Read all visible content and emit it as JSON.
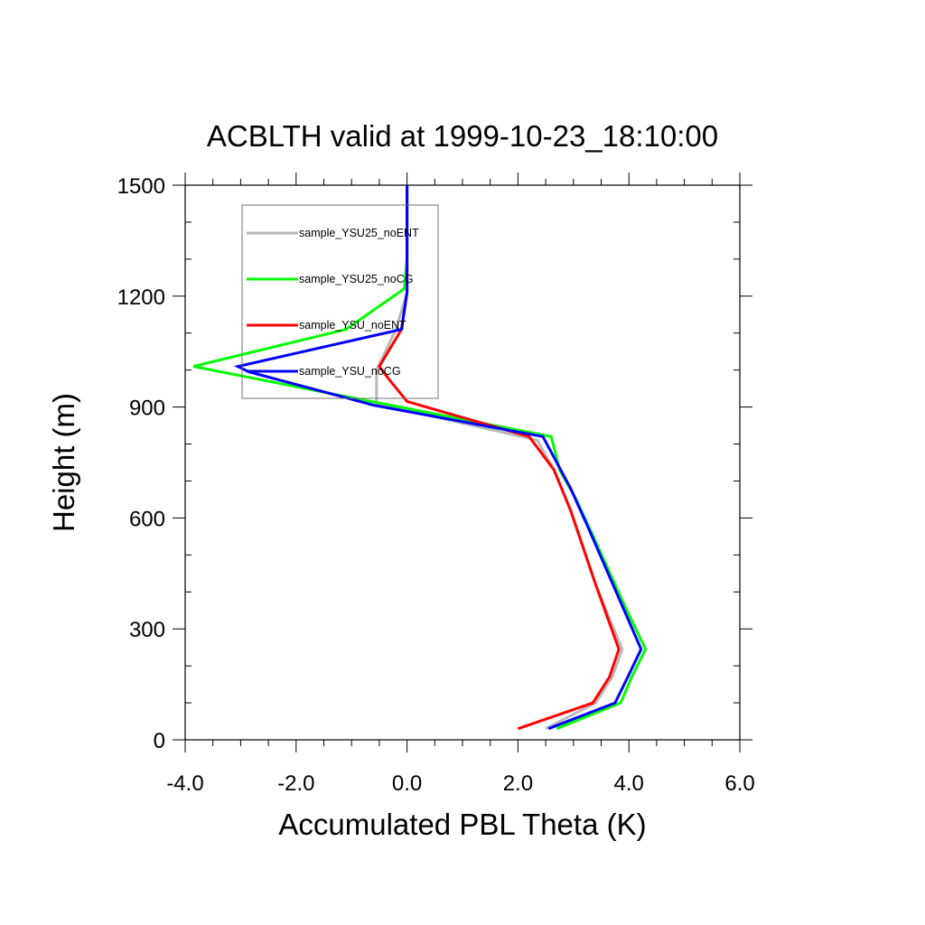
{
  "chart_data": {
    "type": "line",
    "title": "ACBLTH valid at 1999-10-23_18:10:00",
    "xlabel": "Accumulated PBL Theta (K)",
    "ylabel": "Height (m)",
    "xlim": [
      -4.0,
      6.0
    ],
    "ylim": [
      0,
      1500
    ],
    "xticks": [
      "-4.0",
      "-2.0",
      "0.0",
      "2.0",
      "4.0",
      "6.0"
    ],
    "yticks": [
      "0",
      "300",
      "600",
      "900",
      "1200",
      "1500"
    ],
    "legend": "top-left (inside)",
    "grid": false,
    "series": [
      {
        "name": "sample_YSU25_noENT",
        "color": "#b9b9b9",
        "points": [
          [
            2.5,
            30
          ],
          [
            3.4,
            100
          ],
          [
            3.7,
            170
          ],
          [
            3.88,
            245
          ],
          [
            3.4,
            420
          ],
          [
            2.95,
            620
          ],
          [
            2.65,
            730
          ],
          [
            2.35,
            810
          ],
          [
            -0.55,
            910
          ],
          [
            -0.55,
            1000
          ],
          [
            -0.2,
            1110
          ],
          [
            0.0,
            1210
          ],
          [
            0.0,
            1300
          ],
          [
            0.0,
            1500
          ]
        ]
      },
      {
        "name": "sample_YSU25_noCG",
        "color": "#00ff00",
        "points": [
          [
            2.7,
            30
          ],
          [
            3.85,
            100
          ],
          [
            4.05,
            170
          ],
          [
            4.3,
            245
          ],
          [
            3.9,
            370
          ],
          [
            3.45,
            520
          ],
          [
            3.05,
            650
          ],
          [
            2.75,
            730
          ],
          [
            2.6,
            820
          ],
          [
            -1.5,
            940
          ],
          [
            -3.85,
            1010
          ],
          [
            -1.1,
            1110
          ],
          [
            -0.05,
            1220
          ],
          [
            0.0,
            1300
          ],
          [
            0.0,
            1500
          ]
        ]
      },
      {
        "name": "sample_YSU_noENT",
        "color": "#ff0000",
        "points": [
          [
            2.0,
            30
          ],
          [
            3.35,
            100
          ],
          [
            3.65,
            170
          ],
          [
            3.82,
            245
          ],
          [
            3.4,
            420
          ],
          [
            2.95,
            620
          ],
          [
            2.65,
            730
          ],
          [
            2.2,
            820
          ],
          [
            0.0,
            915
          ],
          [
            -0.35,
            980
          ],
          [
            -0.5,
            1010
          ],
          [
            -0.1,
            1110
          ],
          [
            0.0,
            1210
          ],
          [
            0.0,
            1300
          ],
          [
            0.0,
            1500
          ]
        ]
      },
      {
        "name": "sample_YSU_noCG",
        "color": "#0000ff",
        "points": [
          [
            2.55,
            30
          ],
          [
            3.75,
            100
          ],
          [
            3.98,
            170
          ],
          [
            4.22,
            245
          ],
          [
            3.8,
            390
          ],
          [
            3.25,
            580
          ],
          [
            2.95,
            680
          ],
          [
            2.45,
            820
          ],
          [
            -0.6,
            905
          ],
          [
            -2.85,
            995
          ],
          [
            -3.05,
            1010
          ],
          [
            -0.1,
            1110
          ],
          [
            0.0,
            1210
          ],
          [
            0.0,
            1300
          ],
          [
            0.0,
            1500
          ]
        ]
      }
    ]
  }
}
